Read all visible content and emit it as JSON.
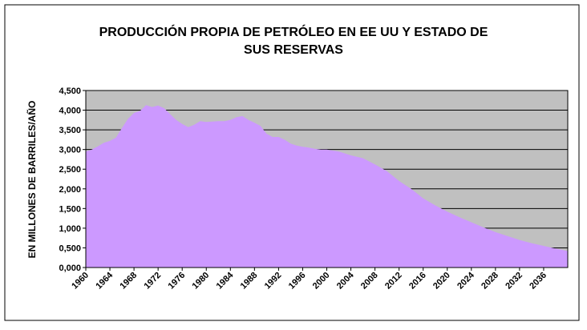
{
  "chart_data": {
    "type": "area",
    "title_lines": [
      "PRODUCCIÓN PROPIA DE PETRÓLEO EN EE UU Y ESTADO DE",
      "SUS RESERVAS"
    ],
    "xlabel": "",
    "ylabel": "EN MILLONES DE BARRILES/AÑO",
    "ylim": [
      0,
      4.5
    ],
    "y_ticks": [
      "0,000",
      "0,500",
      "1,000",
      "1,500",
      "2,000",
      "2,500",
      "3,000",
      "3,500",
      "4,000",
      "4,500"
    ],
    "x_ticks": [
      "1960",
      "1964",
      "1968",
      "1972",
      "1976",
      "1980",
      "1984",
      "1988",
      "1992",
      "1996",
      "2000",
      "2004",
      "2008",
      "2012",
      "2016",
      "2020",
      "2024",
      "2028",
      "2032",
      "2036"
    ],
    "xlim": [
      1960,
      2040
    ],
    "grid": true,
    "series": [
      {
        "fill": "#cc99ff",
        "x": [
          1960,
          1961,
          1962,
          1963,
          1964,
          1965,
          1966,
          1967,
          1968,
          1969,
          1970,
          1971,
          1972,
          1973,
          1974,
          1975,
          1976,
          1977,
          1978,
          1979,
          1980,
          1981,
          1982,
          1983,
          1984,
          1985,
          1986,
          1987,
          1988,
          1989,
          1990,
          1991,
          1992,
          1993,
          1994,
          1995,
          1996,
          1997,
          1998,
          1999,
          2000,
          2002,
          2004,
          2006,
          2008,
          2010,
          2012,
          2014,
          2016,
          2018,
          2020,
          2022,
          2024,
          2026,
          2028,
          2030,
          2032,
          2034,
          2036,
          2038,
          2040
        ],
        "values": [
          2.95,
          3.0,
          3.08,
          3.17,
          3.22,
          3.3,
          3.55,
          3.78,
          3.93,
          3.98,
          4.13,
          4.08,
          4.12,
          4.05,
          3.9,
          3.75,
          3.65,
          3.57,
          3.63,
          3.72,
          3.7,
          3.71,
          3.72,
          3.72,
          3.75,
          3.82,
          3.85,
          3.75,
          3.68,
          3.6,
          3.4,
          3.32,
          3.32,
          3.25,
          3.15,
          3.1,
          3.07,
          3.05,
          3.02,
          3.0,
          3.0,
          2.95,
          2.85,
          2.78,
          2.62,
          2.45,
          2.2,
          2.0,
          1.76,
          1.58,
          1.42,
          1.28,
          1.15,
          1.02,
          0.9,
          0.8,
          0.7,
          0.62,
          0.55,
          0.48,
          0.42
        ]
      }
    ],
    "colors": {
      "plot_background": "#c0c0c0",
      "area_fill": "#cc99ff",
      "grid": "#000000",
      "border": "#000000"
    }
  }
}
